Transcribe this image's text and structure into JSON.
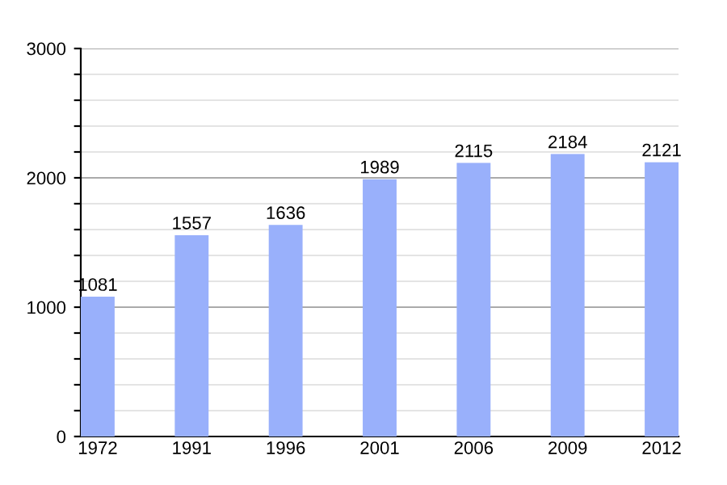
{
  "chart_data": {
    "type": "bar",
    "categories": [
      "1972",
      "1991",
      "1996",
      "2001",
      "2006",
      "2009",
      "2012"
    ],
    "values": [
      1081,
      1557,
      1636,
      1989,
      2115,
      2184,
      2121
    ],
    "color": "#99b0fb",
    "data_labels": true,
    "grid": "y",
    "ylim": [
      0,
      3000
    ],
    "yticks": [
      0,
      {
        "value": 200,
        "label": null
      },
      {
        "value": 400,
        "label": null
      },
      {
        "value": 600,
        "label": null
      },
      {
        "value": 800,
        "label": null
      },
      1000,
      {
        "value": 1200,
        "label": null
      },
      {
        "value": 1400,
        "label": null
      },
      {
        "value": 1600,
        "label": null
      },
      {
        "value": 1800,
        "label": null
      },
      2000,
      {
        "value": 2200,
        "label": null
      },
      {
        "value": 2400,
        "label": null
      },
      {
        "value": 2600,
        "label": null
      },
      {
        "value": 2800,
        "label": null
      },
      3000
    ]
  }
}
